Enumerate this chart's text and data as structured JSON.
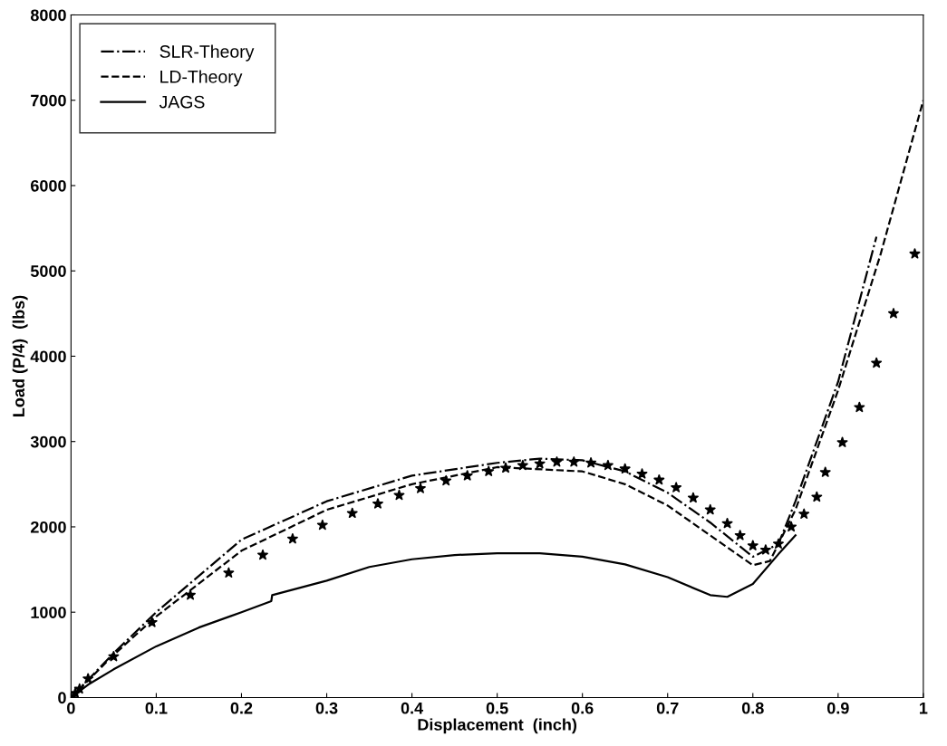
{
  "chart_data": {
    "type": "line",
    "xlabel": "Displacement  (inch)",
    "ylabel": "Load (P/4)  (lbs)",
    "xlim": [
      0,
      1
    ],
    "ylim": [
      0,
      8000
    ],
    "xticks": [
      0,
      0.1,
      0.2,
      0.3,
      0.4,
      0.5,
      0.6,
      0.7,
      0.8,
      0.9,
      1
    ],
    "yticks": [
      0,
      1000,
      2000,
      3000,
      4000,
      5000,
      6000,
      7000,
      8000
    ],
    "grid": false,
    "legend": "top left",
    "series": [
      {
        "name": "SLR-Theory",
        "color": "#000000",
        "line_style": "dashdot",
        "x": [
          0,
          0.05,
          0.1,
          0.2,
          0.3,
          0.4,
          0.5,
          0.55,
          0.6,
          0.65,
          0.7,
          0.75,
          0.8,
          0.83,
          0.85,
          0.9,
          0.945
        ],
        "values": [
          0,
          520,
          1000,
          1850,
          2300,
          2600,
          2750,
          2800,
          2780,
          2650,
          2400,
          2050,
          1650,
          1800,
          2300,
          3700,
          5400
        ]
      },
      {
        "name": "LD-Theory",
        "color": "#000000",
        "line_style": "dashed",
        "x": [
          0,
          0.05,
          0.1,
          0.2,
          0.3,
          0.4,
          0.5,
          0.6,
          0.65,
          0.7,
          0.75,
          0.8,
          0.82,
          0.85,
          0.9,
          0.95,
          1.0
        ],
        "values": [
          0,
          500,
          950,
          1720,
          2200,
          2500,
          2700,
          2650,
          2500,
          2250,
          1900,
          1550,
          1600,
          2200,
          3600,
          5200,
          7000
        ]
      },
      {
        "type": "scatter",
        "marker": "star",
        "color": "#000000",
        "x": [
          0,
          0.005,
          0.01,
          0.02,
          0.05,
          0.095,
          0.14,
          0.185,
          0.225,
          0.26,
          0.295,
          0.33,
          0.36,
          0.385,
          0.41,
          0.44,
          0.465,
          0.49,
          0.51,
          0.53,
          0.55,
          0.57,
          0.59,
          0.61,
          0.63,
          0.65,
          0.67,
          0.69,
          0.71,
          0.73,
          0.75,
          0.77,
          0.785,
          0.8,
          0.815,
          0.83,
          0.845,
          0.86,
          0.875,
          0.885,
          0.905,
          0.925,
          0.945,
          0.965,
          0.99
        ],
        "values": [
          0,
          50,
          100,
          220,
          480,
          880,
          1200,
          1460,
          1670,
          1860,
          2020,
          2160,
          2270,
          2370,
          2450,
          2540,
          2600,
          2650,
          2690,
          2720,
          2740,
          2760,
          2760,
          2750,
          2720,
          2680,
          2620,
          2550,
          2460,
          2340,
          2200,
          2040,
          1900,
          1780,
          1730,
          1800,
          2000,
          2150,
          2350,
          2640,
          2990,
          3400,
          3920,
          4500,
          5200
        ]
      },
      {
        "name": "JAGS",
        "color": "#000000",
        "line_style": "solid",
        "x": [
          0,
          0.02,
          0.05,
          0.1,
          0.15,
          0.2,
          0.235,
          0.236,
          0.3,
          0.35,
          0.4,
          0.45,
          0.5,
          0.55,
          0.6,
          0.65,
          0.7,
          0.75,
          0.77,
          0.8,
          0.83,
          0.85
        ],
        "values": [
          0,
          150,
          330,
          600,
          820,
          1000,
          1130,
          1200,
          1370,
          1530,
          1620,
          1670,
          1690,
          1690,
          1650,
          1560,
          1410,
          1200,
          1180,
          1330,
          1680,
          1900
        ]
      }
    ]
  }
}
